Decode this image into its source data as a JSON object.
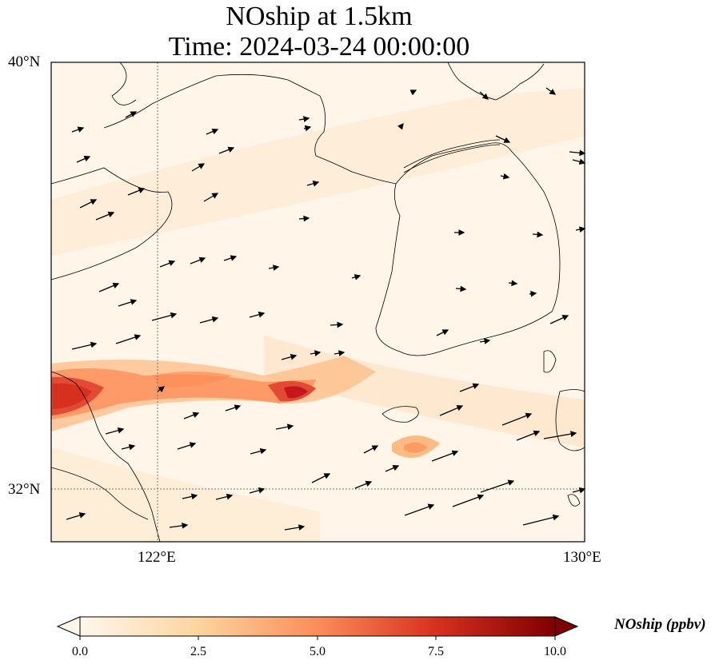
{
  "title_line1": "NOship at 1.5km",
  "title_line2": "Time: 2024-03-24 00:00:00",
  "lat_labels": [
    "40°N",
    "32°N"
  ],
  "lon_labels": [
    "122°E",
    "130°E"
  ],
  "colorbar": {
    "label": "NOship (ppbv)",
    "ticks": [
      "0.0",
      "2.5",
      "5.0",
      "7.5",
      "10.0"
    ],
    "colormap": "OrRd",
    "min": 0,
    "max": 10,
    "extend": "both"
  },
  "colors": {
    "low": "#fff7ec",
    "mid": "#fdbb84",
    "high": "#d7301f",
    "max": "#7f0000"
  }
}
